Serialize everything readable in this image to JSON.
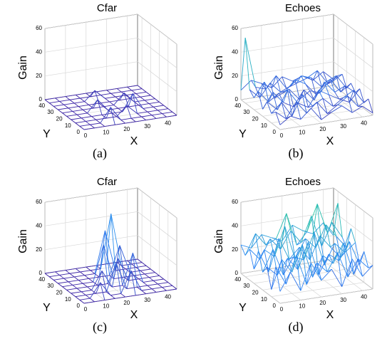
{
  "chart_data": [
    {
      "type": "surface",
      "title": "Cfar",
      "xlabel": "X",
      "ylabel": "Y",
      "zlabel": "Gain",
      "caption": "(a)",
      "x": [
        0,
        5,
        10,
        15,
        20,
        25,
        30,
        35,
        40,
        45
      ],
      "y": [
        0,
        5,
        10,
        15,
        20,
        25,
        30,
        35,
        40,
        45
      ],
      "z": [
        [
          0,
          0,
          0,
          0,
          0,
          0,
          0,
          0,
          0,
          0
        ],
        [
          0,
          0,
          0,
          12,
          0,
          0,
          0,
          0,
          0,
          0
        ],
        [
          0,
          0,
          0,
          0,
          0,
          8,
          0,
          0,
          0,
          0
        ],
        [
          0,
          0,
          0,
          0,
          0,
          0,
          14,
          0,
          0,
          0
        ],
        [
          0,
          0,
          0,
          10,
          0,
          0,
          0,
          0,
          0,
          0
        ],
        [
          0,
          0,
          0,
          0,
          0,
          0,
          9,
          0,
          0,
          0
        ],
        [
          0,
          0,
          0,
          0,
          0,
          0,
          0,
          0,
          0,
          0
        ],
        [
          0,
          0,
          0,
          0,
          8,
          0,
          0,
          0,
          0,
          0
        ],
        [
          0,
          0,
          0,
          0,
          0,
          0,
          0,
          0,
          0,
          0
        ],
        [
          0,
          0,
          0,
          0,
          0,
          0,
          0,
          0,
          0,
          0
        ]
      ],
      "xlim": [
        0,
        45
      ],
      "ylim": [
        0,
        45
      ],
      "zlim": [
        0,
        60
      ],
      "xticks": [
        0,
        10,
        20,
        30,
        40
      ],
      "yticks": [
        0,
        10,
        20,
        30,
        40
      ],
      "zticks": [
        0,
        20,
        40,
        60
      ],
      "colormap": [
        "#3e26a8",
        "#2e87f7",
        "#28c3ab",
        "#f9fb15"
      ],
      "grid": true
    },
    {
      "type": "surface",
      "title": "Echoes",
      "xlabel": "X",
      "ylabel": "Y",
      "zlabel": "Gain",
      "caption": "(b)",
      "x": [
        0,
        5,
        10,
        15,
        20,
        25,
        30,
        35,
        40,
        45
      ],
      "y": [
        0,
        5,
        10,
        15,
        20,
        25,
        30,
        35,
        40,
        45
      ],
      "z": [
        [
          4,
          10,
          6,
          14,
          3,
          8,
          12,
          5,
          9,
          2
        ],
        [
          12,
          5,
          18,
          7,
          15,
          4,
          10,
          16,
          6,
          11
        ],
        [
          8,
          16,
          3,
          20,
          9,
          14,
          6,
          12,
          17,
          5
        ],
        [
          15,
          7,
          22,
          10,
          5,
          18,
          13,
          8,
          4,
          14
        ],
        [
          6,
          19,
          9,
          4,
          17,
          7,
          21,
          11,
          15,
          8
        ],
        [
          18,
          8,
          14,
          16,
          6,
          12,
          9,
          19,
          7,
          13
        ],
        [
          10,
          22,
          7,
          11,
          20,
          15,
          5,
          14,
          18,
          6
        ],
        [
          14,
          6,
          17,
          8,
          12,
          19,
          16,
          7,
          10,
          15
        ],
        [
          55,
          12,
          9,
          19,
          7,
          10,
          13,
          18,
          6,
          11
        ],
        [
          8,
          15,
          11,
          6,
          14,
          9,
          12,
          7,
          13,
          5
        ]
      ],
      "xlim": [
        0,
        45
      ],
      "ylim": [
        0,
        45
      ],
      "zlim": [
        0,
        60
      ],
      "xticks": [
        0,
        10,
        20,
        30,
        40
      ],
      "yticks": [
        0,
        10,
        20,
        30,
        40
      ],
      "zticks": [
        0,
        20,
        40,
        60
      ],
      "colormap": [
        "#3e26a8",
        "#2e87f7",
        "#28c3ab",
        "#f9fb15"
      ],
      "grid": true
    },
    {
      "type": "surface",
      "title": "Cfar",
      "xlabel": "X",
      "ylabel": "Y",
      "zlabel": "Gain",
      "caption": "(c)",
      "x": [
        0,
        5,
        10,
        15,
        20,
        25,
        30,
        35,
        40,
        45
      ],
      "y": [
        0,
        5,
        10,
        15,
        20,
        25,
        30,
        35,
        40,
        45
      ],
      "z": [
        [
          0,
          0,
          0,
          0,
          0,
          0,
          0,
          0,
          0,
          0
        ],
        [
          0,
          0,
          12,
          0,
          0,
          18,
          0,
          0,
          0,
          0
        ],
        [
          0,
          0,
          0,
          0,
          22,
          0,
          0,
          0,
          0,
          0
        ],
        [
          0,
          0,
          0,
          15,
          0,
          0,
          26,
          0,
          0,
          0
        ],
        [
          0,
          0,
          0,
          0,
          0,
          20,
          0,
          0,
          0,
          0
        ],
        [
          0,
          0,
          0,
          0,
          30,
          0,
          0,
          0,
          0,
          0
        ],
        [
          0,
          0,
          0,
          0,
          0,
          0,
          24,
          0,
          0,
          0
        ],
        [
          0,
          0,
          0,
          0,
          0,
          35,
          0,
          0,
          0,
          0
        ],
        [
          0,
          0,
          0,
          0,
          0,
          0,
          45,
          0,
          0,
          0
        ],
        [
          0,
          0,
          0,
          0,
          0,
          0,
          0,
          0,
          0,
          0
        ]
      ],
      "xlim": [
        0,
        45
      ],
      "ylim": [
        0,
        45
      ],
      "zlim": [
        0,
        60
      ],
      "xticks": [
        0,
        10,
        20,
        30,
        40
      ],
      "yticks": [
        0,
        10,
        20,
        30,
        40
      ],
      "zticks": [
        0,
        20,
        40,
        60
      ],
      "colormap": [
        "#3e26a8",
        "#2e87f7",
        "#28c3ab",
        "#f9fb15"
      ],
      "grid": true
    },
    {
      "type": "surface",
      "title": "Echoes",
      "xlabel": "X",
      "ylabel": "Y",
      "zlabel": "Gain",
      "caption": "(d)",
      "x": [
        0,
        5,
        10,
        15,
        20,
        25,
        30,
        35,
        40,
        45
      ],
      "y": [
        0,
        5,
        10,
        15,
        20,
        25,
        30,
        35,
        40,
        45
      ],
      "z": [
        [
          10,
          25,
          8,
          30,
          14,
          22,
          6,
          28,
          12,
          20
        ],
        [
          28,
          12,
          35,
          9,
          26,
          17,
          32,
          10,
          24,
          15
        ],
        [
          6,
          30,
          18,
          40,
          11,
          28,
          20,
          36,
          8,
          26
        ],
        [
          22,
          14,
          27,
          16,
          38,
          9,
          25,
          18,
          33,
          12
        ],
        [
          15,
          33,
          10,
          24,
          20,
          42,
          13,
          30,
          21,
          28
        ],
        [
          30,
          11,
          38,
          19,
          28,
          16,
          35,
          24,
          14,
          37
        ],
        [
          12,
          27,
          20,
          44,
          15,
          31,
          22,
          40,
          29,
          18
        ],
        [
          26,
          16,
          32,
          22,
          36,
          25,
          46,
          19,
          38,
          24
        ],
        [
          18,
          35,
          24,
          28,
          48,
          20,
          30,
          52,
          26,
          50
        ],
        [
          24,
          20,
          30,
          26,
          22,
          34,
          28,
          24,
          32,
          20
        ]
      ],
      "xlim": [
        0,
        45
      ],
      "ylim": [
        0,
        45
      ],
      "zlim": [
        0,
        60
      ],
      "xticks": [
        0,
        10,
        20,
        30,
        40
      ],
      "yticks": [
        0,
        10,
        20,
        30,
        40
      ],
      "zticks": [
        0,
        20,
        40,
        60
      ],
      "colormap": [
        "#3e26a8",
        "#2e87f7",
        "#28c3ab",
        "#f9fb15"
      ],
      "grid": true
    }
  ]
}
